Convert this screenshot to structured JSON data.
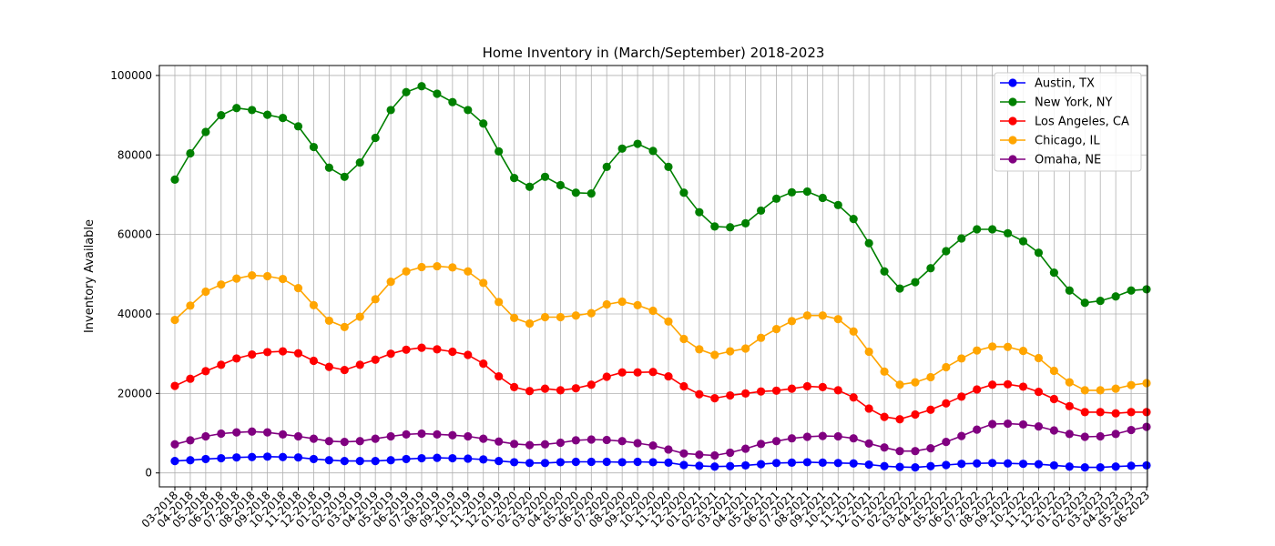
{
  "chart_data": {
    "type": "line",
    "title": "Home Inventory in (March/September) 2018-2023",
    "xlabel": "",
    "ylabel": "Inventory Available",
    "ylim": [
      -3500,
      102500
    ],
    "yticks": [
      0,
      20000,
      40000,
      60000,
      80000,
      100000
    ],
    "ytick_labels": [
      "0",
      "20000",
      "40000",
      "60000",
      "80000",
      "100000"
    ],
    "grid": true,
    "legend_position": "top-right",
    "categories": [
      "03-2018",
      "04-2018",
      "05-2018",
      "06-2018",
      "07-2018",
      "08-2018",
      "09-2018",
      "10-2018",
      "11-2018",
      "12-2018",
      "01-2019",
      "02-2019",
      "03-2019",
      "04-2019",
      "05-2019",
      "06-2019",
      "07-2019",
      "08-2019",
      "09-2019",
      "10-2019",
      "11-2019",
      "12-2019",
      "01-2020",
      "02-2020",
      "03-2020",
      "04-2020",
      "05-2020",
      "06-2020",
      "07-2020",
      "08-2020",
      "09-2020",
      "10-2020",
      "11-2020",
      "12-2020",
      "01-2021",
      "02-2021",
      "03-2021",
      "04-2021",
      "05-2021",
      "06-2021",
      "07-2021",
      "08-2021",
      "09-2021",
      "10-2021",
      "11-2021",
      "12-2021",
      "01-2022",
      "02-2022",
      "03-2022",
      "04-2022",
      "05-2022",
      "06-2022",
      "07-2022",
      "08-2022",
      "09-2022",
      "10-2022",
      "11-2022",
      "12-2022",
      "01-2023",
      "02-2023",
      "03-2023",
      "04-2023",
      "05-2023",
      "06-2023"
    ],
    "series": [
      {
        "name": "Austin, TX",
        "color": "#0000ff",
        "values": [
          3000,
          3200,
          3500,
          3700,
          3900,
          4000,
          4100,
          4000,
          3900,
          3500,
          3200,
          3000,
          3000,
          3000,
          3200,
          3500,
          3700,
          3800,
          3700,
          3600,
          3400,
          3000,
          2700,
          2500,
          2500,
          2700,
          2800,
          2800,
          2800,
          2700,
          2800,
          2700,
          2600,
          2000,
          1800,
          1600,
          1700,
          1900,
          2200,
          2500,
          2600,
          2700,
          2600,
          2500,
          2400,
          2100,
          1700,
          1500,
          1400,
          1700,
          2000,
          2300,
          2400,
          2500,
          2400,
          2300,
          2200,
          1900,
          1600,
          1400,
          1400,
          1600,
          1800,
          1900
        ]
      },
      {
        "name": "New York, NY",
        "color": "#008000",
        "values": [
          73800,
          80400,
          85800,
          90000,
          91800,
          91300,
          90100,
          89300,
          87200,
          82000,
          76800,
          74500,
          78100,
          84300,
          91300,
          95800,
          97300,
          95400,
          93300,
          91300,
          87900,
          80900,
          74200,
          72000,
          74500,
          72400,
          70500,
          70300,
          77000,
          81600,
          82800,
          81000,
          77000,
          70500,
          65600,
          62000,
          61800,
          62800,
          66000,
          69000,
          70600,
          70800,
          69200,
          67400,
          63900,
          57800,
          50700,
          46400,
          48000,
          51500,
          55800,
          59000,
          61300,
          61300,
          60300,
          58300,
          55400,
          50400,
          45900,
          42800,
          43300,
          44400,
          45900,
          46200
        ]
      },
      {
        "name": "Los Angeles, CA",
        "color": "#ff0000",
        "values": [
          21900,
          23700,
          25600,
          27200,
          28800,
          29800,
          30400,
          30600,
          30100,
          28200,
          26700,
          25900,
          27200,
          28500,
          30000,
          31000,
          31500,
          31100,
          30500,
          29700,
          27500,
          24300,
          21600,
          20600,
          21200,
          20800,
          21300,
          22200,
          24200,
          25300,
          25300,
          25400,
          24300,
          21800,
          19800,
          18800,
          19500,
          20000,
          20500,
          20700,
          21200,
          21800,
          21600,
          20800,
          19000,
          16200,
          14100,
          13500,
          14700,
          15900,
          17500,
          19200,
          21000,
          22200,
          22300,
          21700,
          20400,
          18600,
          16800,
          15300,
          15300,
          15000,
          15300,
          15300
        ]
      },
      {
        "name": "Chicago, IL",
        "color": "#ffa500",
        "values": [
          38500,
          42100,
          45600,
          47400,
          48900,
          49700,
          49500,
          48800,
          46500,
          42200,
          38300,
          36700,
          39300,
          43700,
          48100,
          50700,
          51800,
          52000,
          51700,
          50700,
          47800,
          43000,
          39000,
          37600,
          39200,
          39200,
          39600,
          40200,
          42400,
          43100,
          42200,
          40800,
          38100,
          33700,
          31100,
          29700,
          30600,
          31300,
          34000,
          36200,
          38200,
          39600,
          39600,
          38700,
          35600,
          30500,
          25500,
          22200,
          22800,
          24100,
          26600,
          28800,
          30800,
          31800,
          31700,
          30700,
          28900,
          25700,
          22800,
          20800,
          20800,
          21200,
          22100,
          22600
        ]
      },
      {
        "name": "Omaha, NE",
        "color": "#800080",
        "values": [
          7200,
          8200,
          9200,
          9900,
          10200,
          10400,
          10200,
          9700,
          9200,
          8600,
          8000,
          7800,
          8000,
          8600,
          9200,
          9700,
          9900,
          9700,
          9500,
          9200,
          8600,
          7900,
          7300,
          7000,
          7200,
          7600,
          8200,
          8400,
          8300,
          8000,
          7500,
          6900,
          5900,
          4900,
          4600,
          4400,
          5100,
          6100,
          7300,
          8000,
          8700,
          9100,
          9300,
          9200,
          8700,
          7400,
          6400,
          5500,
          5500,
          6200,
          7800,
          9300,
          10900,
          12300,
          12400,
          12200,
          11700,
          10700,
          9800,
          9100,
          9200,
          9800,
          10800,
          11600
        ]
      }
    ]
  }
}
